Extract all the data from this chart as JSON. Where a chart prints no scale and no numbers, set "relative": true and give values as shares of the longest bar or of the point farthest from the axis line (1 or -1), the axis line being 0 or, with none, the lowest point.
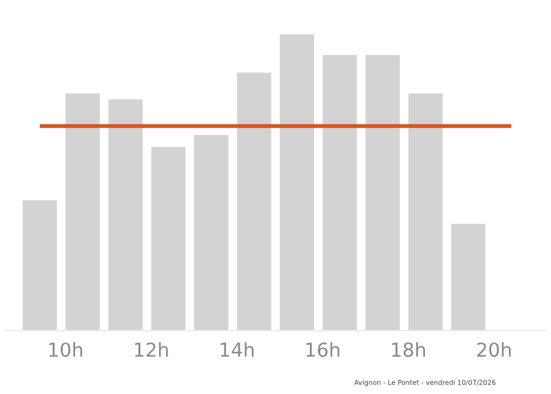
{
  "chart_data": {
    "type": "bar",
    "relative": true,
    "x": [
      9.4,
      10.4,
      11.4,
      12.4,
      13.4,
      14.4,
      15.4,
      16.4,
      17.4,
      18.4,
      19.4
    ],
    "values": [
      0.44,
      0.8,
      0.78,
      0.62,
      0.66,
      0.87,
      1,
      0.93,
      0.93,
      0.8,
      0.36
    ],
    "color": "#d3d3d3",
    "xlim": [
      8.6,
      21.2
    ],
    "xticks": [
      {
        "value": 10,
        "label": "10h"
      },
      {
        "value": 12,
        "label": "12h"
      },
      {
        "value": 14,
        "label": "14h"
      },
      {
        "value": 16,
        "label": "16h"
      },
      {
        "value": 18,
        "label": "18h"
      },
      {
        "value": 20,
        "label": "20h"
      }
    ],
    "ref_lines": [
      {
        "axis": "y",
        "value": 0.69,
        "color": "#d9531e"
      }
    ],
    "annotations": [
      "Avignon - Le Pontet - vendredi 10/07/2026"
    ],
    "grid": false,
    "legend": false
  }
}
